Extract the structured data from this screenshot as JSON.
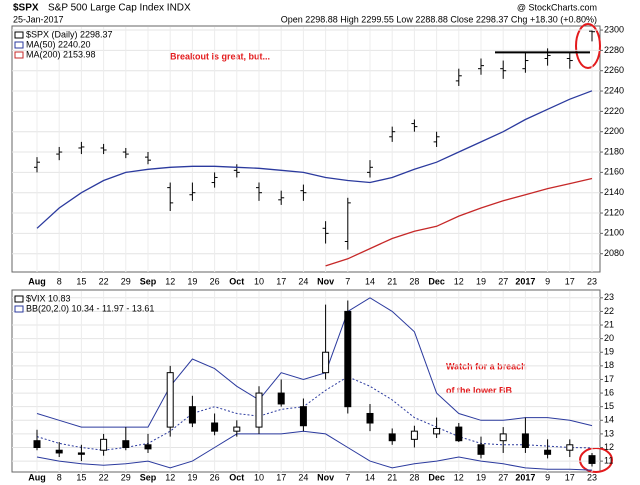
{
  "chart_data": [
    {
      "type": "ohlc",
      "title": "$SPX",
      "subtitle": "S&P 500 Large Cap Index INDX",
      "date": "25-Jan-2017",
      "quote": "Open 2298.88  High 2299.55  Low 2288.88  Close 2298.37  Chg +18.30 (+0.80%)",
      "credit": "@ StockCharts.com",
      "annotation": "Breakout is great, but...",
      "categories": [
        "Aug",
        "8",
        "15",
        "22",
        "29",
        "Sep",
        "12",
        "19",
        "26",
        "Oct",
        "10",
        "17",
        "24",
        "Nov",
        "7",
        "14",
        "21",
        "28",
        "Dec",
        "12",
        "19",
        "27",
        "2017",
        "9",
        "17",
        "23"
      ],
      "series": [
        {
          "name": "$SPX (Daily) 2298.37",
          "color": "#000000",
          "open": [
            2165,
            2178,
            2184,
            2184,
            2180,
            2175,
            2145,
            2138,
            2150,
            2162,
            2145,
            2133,
            2142,
            2105,
            2092,
            2160,
            2195,
            2208,
            2190,
            2250,
            2262,
            2262,
            2262,
            2272,
            2272,
            2298.88
          ],
          "high": [
            2175,
            2185,
            2190,
            2188,
            2184,
            2180,
            2150,
            2150,
            2160,
            2168,
            2150,
            2142,
            2148,
            2112,
            2135,
            2172,
            2205,
            2212,
            2200,
            2262,
            2272,
            2270,
            2278,
            2282,
            2278,
            2299.55
          ],
          "low": [
            2160,
            2172,
            2178,
            2178,
            2174,
            2168,
            2122,
            2132,
            2145,
            2155,
            2132,
            2128,
            2132,
            2090,
            2084,
            2155,
            2190,
            2200,
            2185,
            2245,
            2256,
            2252,
            2258,
            2265,
            2262,
            2288.88
          ],
          "close": [
            2170,
            2180,
            2185,
            2182,
            2178,
            2172,
            2130,
            2140,
            2155,
            2160,
            2140,
            2135,
            2140,
            2100,
            2130,
            2165,
            2200,
            2205,
            2195,
            2255,
            2265,
            2260,
            2270,
            2275,
            2270,
            2298.37
          ]
        },
        {
          "name": "MA(50) 2240.20",
          "color": "#2b3a9e",
          "values": [
            2105,
            2125,
            2140,
            2152,
            2160,
            2163,
            2165,
            2166,
            2166,
            2165,
            2164,
            2162,
            2160,
            2155,
            2152,
            2150,
            2155,
            2163,
            2170,
            2180,
            2190,
            2200,
            2212,
            2222,
            2232,
            2240.2
          ]
        },
        {
          "name": "MA(200) 2153.98",
          "color": "#c62828",
          "values": [
            null,
            null,
            null,
            null,
            null,
            null,
            null,
            null,
            null,
            null,
            null,
            null,
            null,
            2068,
            2075,
            2085,
            2095,
            2102,
            2107,
            2117,
            2125,
            2132,
            2138,
            2144,
            2149,
            2153.98
          ]
        }
      ],
      "resistance": 2278,
      "ylim": [
        2062,
        2303
      ],
      "yticks": [
        2080,
        2100,
        2120,
        2140,
        2160,
        2180,
        2200,
        2220,
        2240,
        2260,
        2280,
        2300
      ]
    },
    {
      "type": "candlestick",
      "annotation": [
        "Watch for a breach",
        "of the lower BB"
      ],
      "categories": [
        "Aug",
        "8",
        "15",
        "22",
        "29",
        "Sep",
        "12",
        "19",
        "26",
        "Oct",
        "10",
        "17",
        "24",
        "Nov",
        "7",
        "14",
        "21",
        "28",
        "Dec",
        "12",
        "19",
        "27",
        "2017",
        "9",
        "17",
        "23"
      ],
      "series": [
        {
          "name": "$VIX 10.83",
          "color": "#000000",
          "open": [
            12.5,
            11.8,
            11.6,
            11.8,
            12.5,
            12.2,
            13.5,
            15.0,
            13.8,
            13.2,
            13.5,
            16.0,
            15.0,
            17.5,
            22.0,
            14.5,
            13.0,
            12.6,
            13.0,
            13.5,
            12.2,
            12.5,
            13.0,
            11.8,
            11.8,
            11.4
          ],
          "high": [
            13.3,
            12.4,
            12.2,
            13.0,
            13.5,
            13.0,
            18.0,
            15.8,
            14.5,
            14.0,
            16.5,
            17.0,
            15.6,
            22.5,
            22.8,
            15.2,
            13.4,
            13.6,
            14.2,
            13.8,
            12.8,
            13.5,
            14.2,
            12.6,
            12.6,
            11.6
          ],
          "low": [
            11.8,
            11.3,
            11.0,
            11.4,
            11.8,
            11.6,
            12.8,
            13.5,
            12.9,
            12.8,
            13.0,
            15.0,
            13.2,
            17.0,
            14.5,
            13.2,
            12.2,
            12.0,
            12.7,
            12.4,
            11.2,
            11.6,
            11.6,
            11.2,
            11.3,
            10.6
          ],
          "close": [
            12.0,
            11.6,
            11.5,
            12.6,
            12.0,
            11.9,
            17.5,
            13.8,
            13.2,
            13.5,
            16.0,
            15.2,
            13.6,
            19.0,
            15.0,
            13.8,
            12.5,
            13.2,
            13.4,
            12.5,
            11.5,
            13.0,
            12.0,
            11.5,
            12.2,
            10.83
          ]
        },
        {
          "name": "BB(20,2.0) 10.34 - 11.97 - 13.61",
          "color": "#2b3a9e",
          "upper": [
            14.5,
            14,
            13.5,
            13.5,
            13.5,
            13.5,
            16.5,
            18.5,
            17.8,
            16.5,
            15.5,
            17.5,
            17,
            17.5,
            22,
            23,
            22,
            20.5,
            16,
            14.5,
            14,
            14,
            14.2,
            14.2,
            14,
            13.61
          ],
          "middle": [
            12.8,
            12.3,
            12,
            11.8,
            12,
            12.3,
            13.2,
            14.5,
            15,
            14.5,
            14.3,
            14.8,
            15,
            16.2,
            17.2,
            16.5,
            15.5,
            14.2,
            13.5,
            12.8,
            12.3,
            12.2,
            12.2,
            12.1,
            12,
            11.97
          ],
          "lower": [
            11.3,
            11,
            10.8,
            10.7,
            10.8,
            11,
            10.5,
            11,
            12,
            13,
            13,
            13,
            13.2,
            13,
            12,
            11,
            10.5,
            10.8,
            11,
            11.3,
            11,
            10.8,
            10.5,
            10.4,
            10.4,
            10.34
          ]
        }
      ],
      "ylim": [
        10.2,
        23.5
      ],
      "yticks": [
        11,
        12,
        13,
        14,
        15,
        16,
        17,
        18,
        19,
        20,
        21,
        22,
        23
      ]
    }
  ]
}
